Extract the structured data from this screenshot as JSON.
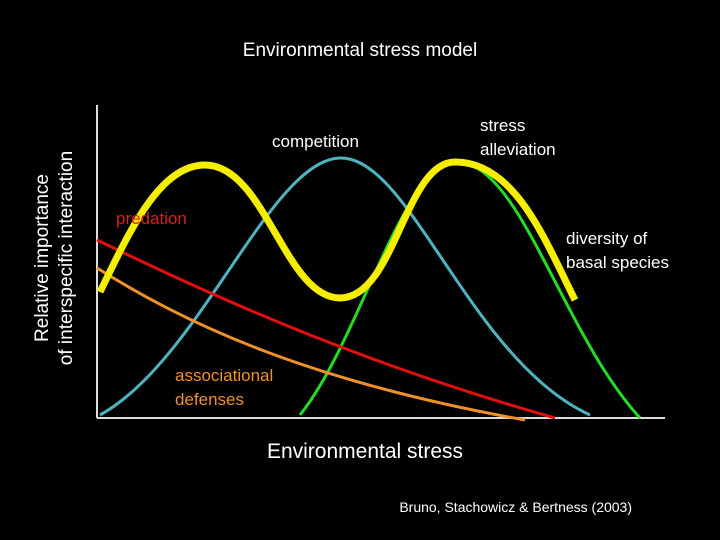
{
  "header": {
    "title": "Environmental stress model"
  },
  "axes": {
    "y_label": [
      "Relative importance",
      "of interspecific interaction"
    ],
    "x_label": "Environmental stress"
  },
  "curves": {
    "competition": "competition",
    "stress_alleviation": [
      "stress",
      "alleviation"
    ],
    "predation": "predation",
    "diversity": [
      "diversity of",
      "basal species"
    ],
    "associational_defenses": [
      "associational",
      "defenses"
    ]
  },
  "citation": "Bruno, Stachowicz & Bertness (2003)"
}
